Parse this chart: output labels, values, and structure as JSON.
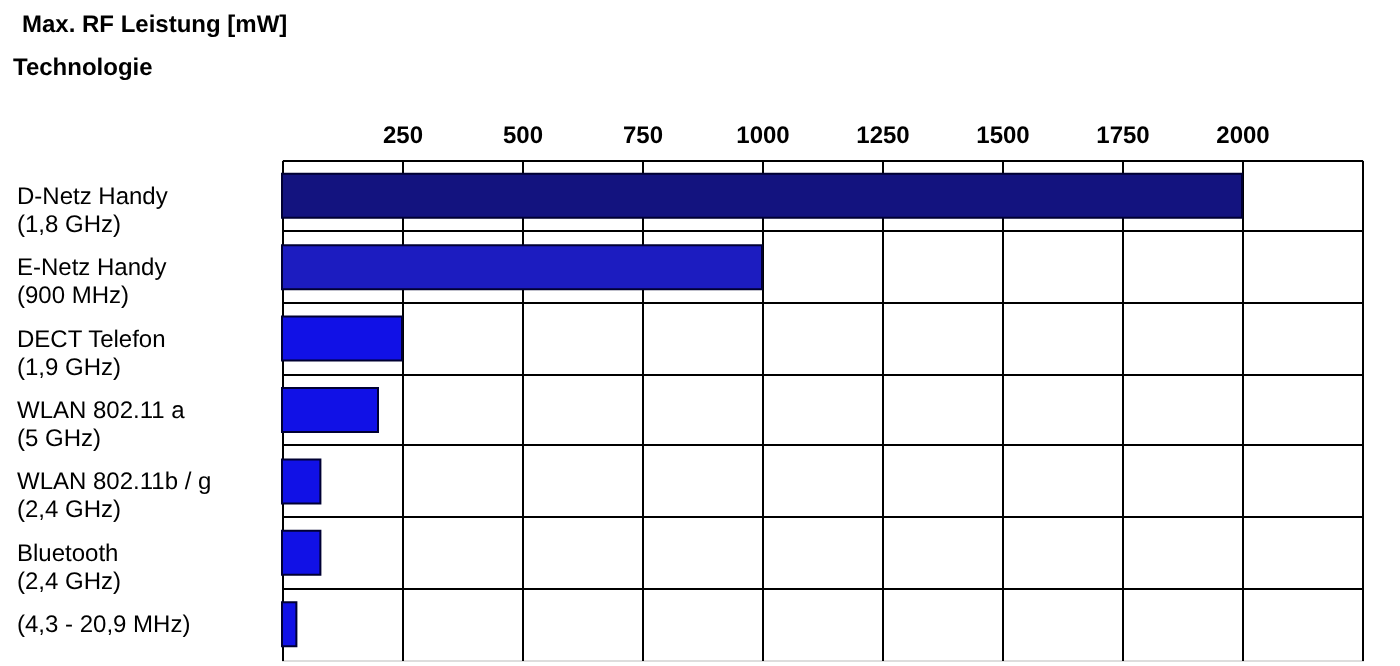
{
  "chart_data": {
    "type": "bar",
    "orientation": "horizontal",
    "title": "Max. RF Leistung [mW]",
    "ylabel": "Technologie",
    "categories": [
      "D-Netz Handy\n(1,8 GHz)",
      "E-Netz Handy\n(900 MHz)",
      "DECT Telefon\n(1,9 GHz)",
      "WLAN 802.11 a\n(5 GHz)",
      "WLAN 802.11b / g\n(2,4 GHz)",
      "Bluetooth\n(2,4 GHz)",
      "(4,3 - 20,9 MHz)"
    ],
    "values": [
      2000,
      1000,
      250,
      200,
      80,
      80,
      30
    ],
    "colors": [
      "#13137f",
      "#1c1cc0",
      "#1111e6",
      "#1111e6",
      "#1111e6",
      "#1111e6",
      "#1111e6"
    ],
    "xlim": [
      0,
      2250
    ],
    "xticks": [
      {
        "value": 0,
        "label": null
      },
      250,
      500,
      750,
      1000,
      1250,
      1500,
      1750,
      2000,
      {
        "value": 2250,
        "label": null
      }
    ],
    "grid": true
  }
}
